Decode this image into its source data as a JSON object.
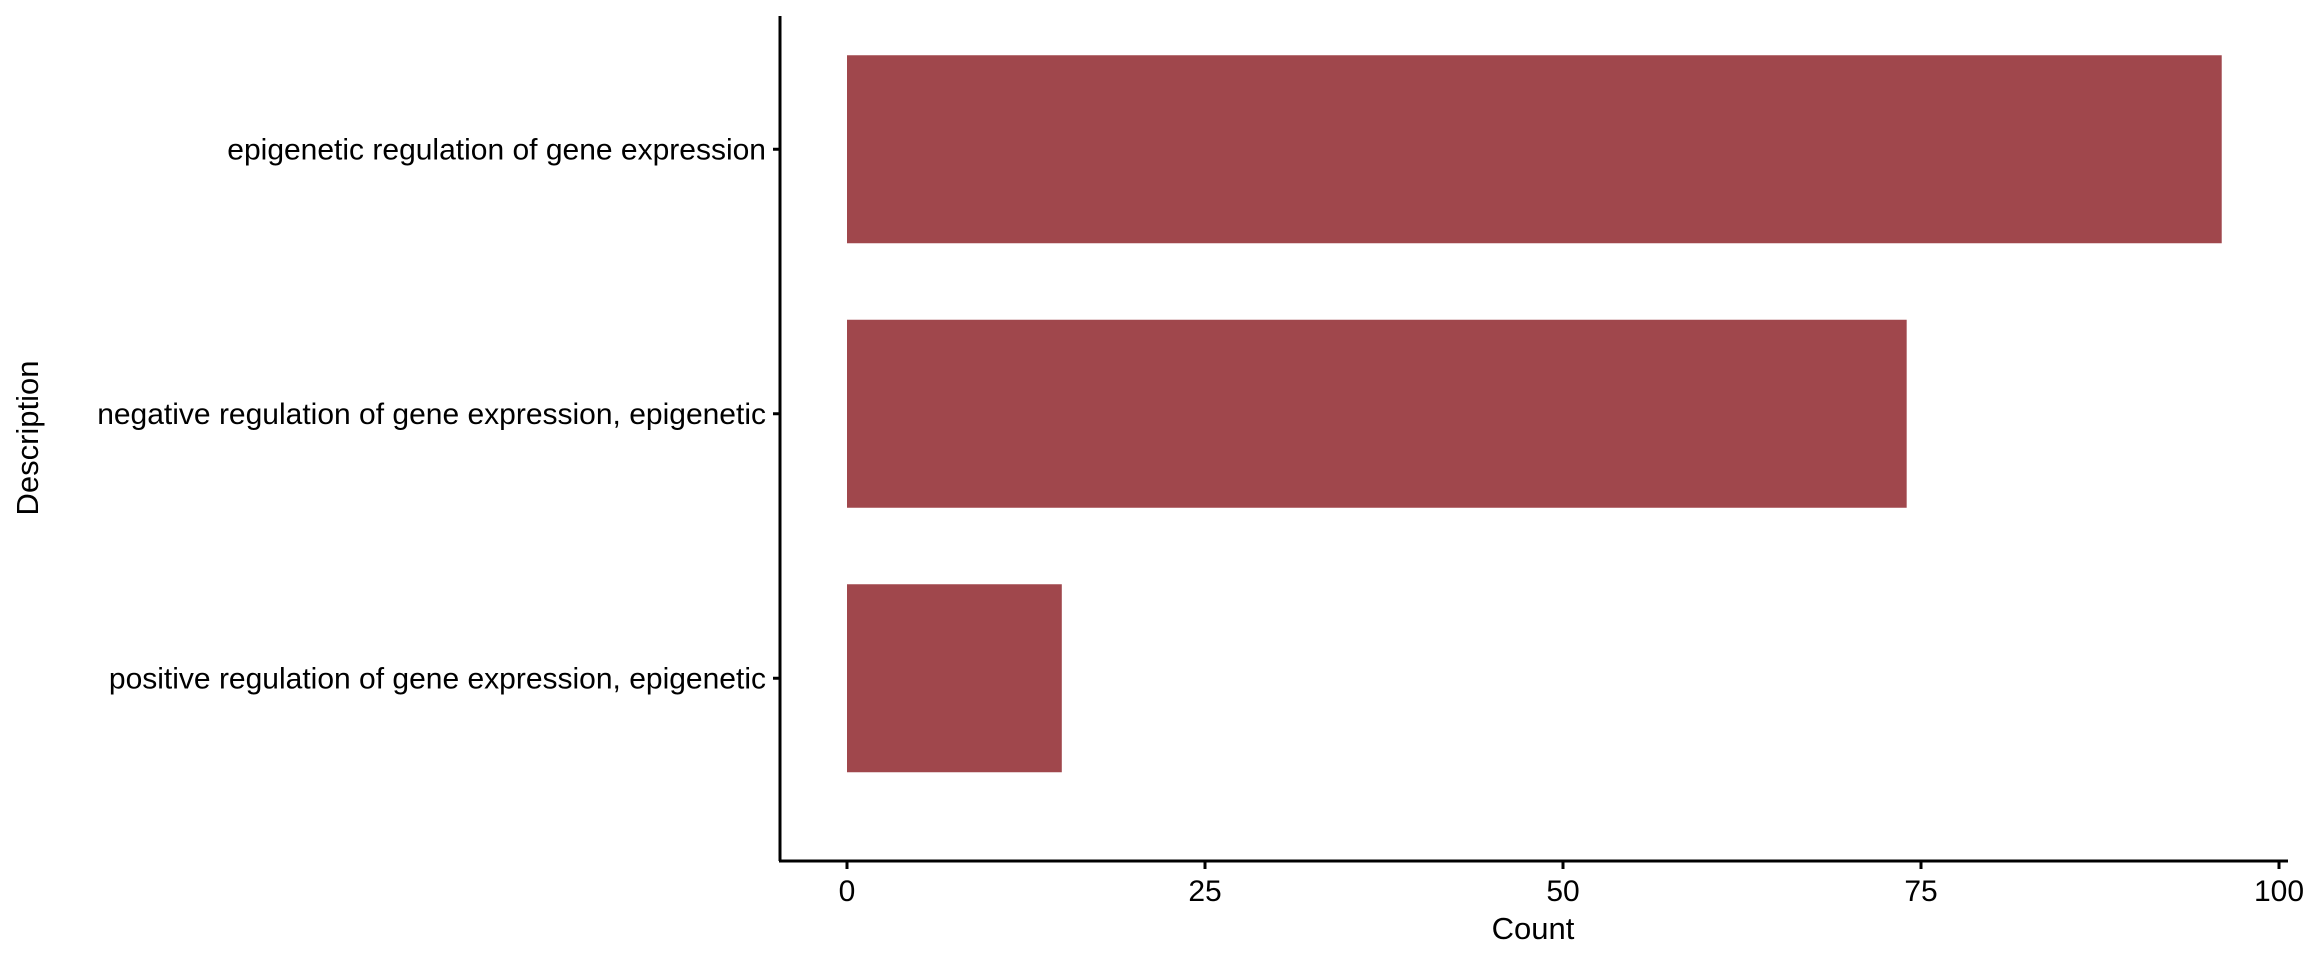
{
  "chart_data": {
    "type": "bar",
    "orientation": "horizontal",
    "categories": [
      "epigenetic regulation of gene expression",
      "negative regulation of gene expression, epigenetic",
      "positive regulation of gene expression, epigenetic"
    ],
    "values": [
      96,
      74,
      15
    ],
    "xlabel": "Count",
    "ylabel": "Description",
    "xlim": [
      0,
      100
    ],
    "xticks": [
      0,
      25,
      50,
      75,
      100
    ],
    "grid": false,
    "legend": "none",
    "bar_color": "#a0474c"
  }
}
